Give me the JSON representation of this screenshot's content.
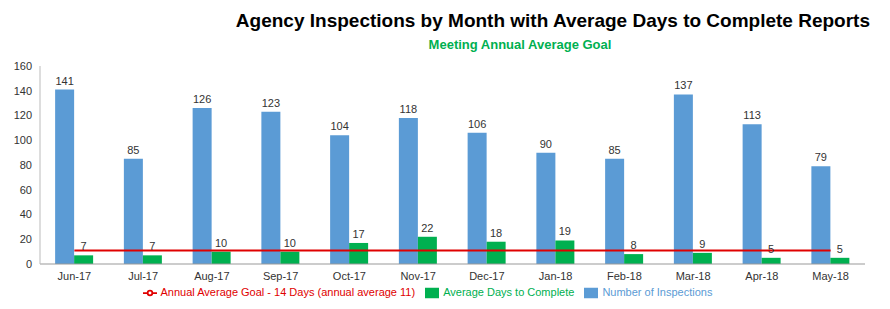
{
  "chart_data": {
    "type": "bar",
    "title": "Agency Inspections by Month with Average Days to Complete Reports",
    "subtitle": "Meeting Annual Average Goal",
    "categories": [
      "Jun-17",
      "Jul-17",
      "Aug-17",
      "Sep-17",
      "Oct-17",
      "Nov-17",
      "Dec-17",
      "Jan-18",
      "Feb-18",
      "Mar-18",
      "Apr-18",
      "May-18"
    ],
    "series": [
      {
        "name": "Number of Inspections",
        "color": "#5b9bd5",
        "type": "bar",
        "data_labels": true,
        "values": [
          141,
          85,
          126,
          123,
          104,
          118,
          106,
          90,
          85,
          137,
          113,
          79
        ]
      },
      {
        "name": "Average Days to Complete",
        "color": "#00b050",
        "type": "bar",
        "data_labels": true,
        "values": [
          7,
          7,
          10,
          10,
          17,
          22,
          18,
          19,
          8,
          9,
          5,
          5
        ]
      },
      {
        "name": "Annual Average Goal - 14 Days (annual average 11)",
        "color": "#e00000",
        "type": "line",
        "data_labels": false,
        "values": [
          11,
          11,
          11,
          11,
          11,
          11,
          11,
          11,
          11,
          11,
          11,
          11
        ]
      }
    ],
    "ylim": [
      0,
      160
    ],
    "yticks": [
      0,
      20,
      40,
      60,
      80,
      100,
      120,
      140,
      160
    ],
    "grid": false,
    "legend": "bottom"
  }
}
